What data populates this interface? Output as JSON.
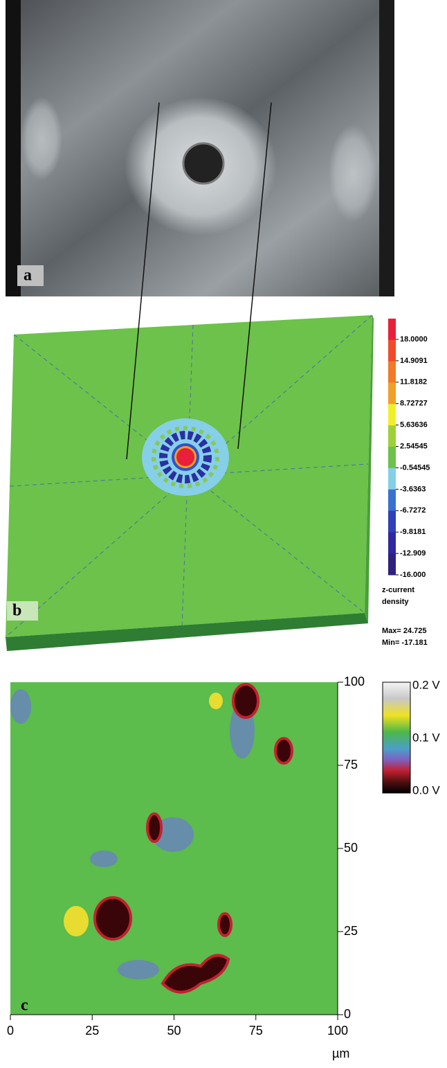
{
  "panel_a": {
    "label": "a"
  },
  "panel_b": {
    "label": "b",
    "colorbar_labels": [
      "18.0000",
      "14.9091",
      "11.8182",
      "8.72727",
      "5.63636",
      "2.54545",
      "-0.54545",
      "-3.6363",
      "-6.7272",
      "-9.8181",
      "-12.909",
      "-16.000"
    ],
    "quantity": [
      "z-current",
      "density"
    ],
    "max": "Max= 24.725",
    "min": "Min= -17.181"
  },
  "panel_c": {
    "label": "c",
    "xlim": [
      0,
      100
    ],
    "ylim": [
      0,
      100
    ],
    "xticks": [
      0,
      25,
      50,
      75,
      100
    ],
    "yticks": [
      0,
      25,
      50,
      75,
      100
    ],
    "x_unit": "µm",
    "colorbar_labels": [
      "0.2 V",
      "0.1 V",
      "0.0 V"
    ]
  }
}
